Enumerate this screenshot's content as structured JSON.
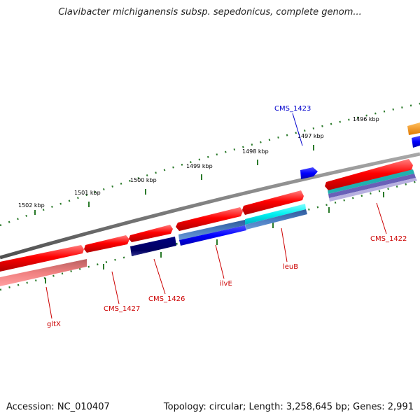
{
  "title": "Clavibacter michiganensis subsp. sepedonicus, complete genom...",
  "footer": {
    "accession": "Accession: NC_010407",
    "summary": "Topology: circular; Length: 3,258,645 bp; Genes: 2,991"
  },
  "scale_labels": [
    "1502 kbp",
    "1501 kbp",
    "1500 kbp",
    "1499 kbp",
    "1498 kbp",
    "1497 kbp",
    "1496 kbp"
  ],
  "gene_labels": [
    "CMS_1423",
    "CMS_1422",
    "leuB",
    "ilvE",
    "CMS_1426",
    "CMS_1427",
    "gltX"
  ],
  "colors": {
    "forward_gene": "#ff0000",
    "reverse_gene_highlight": "#0000ff",
    "backbone": "#808080",
    "tick": "#2a7a2a",
    "label_red": "#cc0000",
    "label_blue": "#0000cc"
  }
}
